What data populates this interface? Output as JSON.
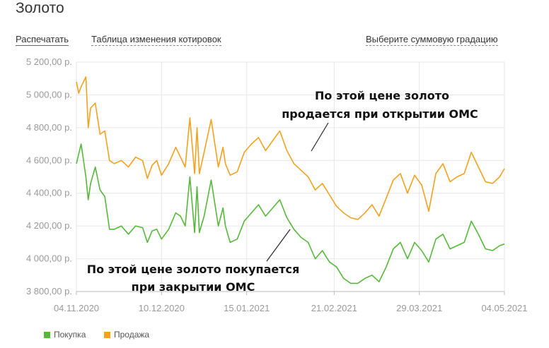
{
  "page": {
    "title": "Золото",
    "print_label": "Распечатать",
    "quotes_table_label": "Таблица изменения котировок",
    "gradation_label": "Выберите суммовую градацию"
  },
  "chart_data": {
    "type": "line",
    "title": "",
    "xlabel": "",
    "ylabel": "",
    "ylim": [
      3800,
      5200
    ],
    "y_ticks": [
      3800,
      4000,
      4200,
      4400,
      4600,
      4800,
      5000,
      5200
    ],
    "y_tick_labels": [
      "3 800,00 р.",
      "4 000,00 р.",
      "4 200,00 р.",
      "4 400,00 р.",
      "4 600,00 р.",
      "4 800,00 р.",
      "5 000,00 р.",
      "5 200,00 р."
    ],
    "x_tick_labels": [
      "04.11.2020",
      "10.12.2020",
      "15.01.2021",
      "21.02.2021",
      "29.03.2021",
      "04.05.2021"
    ],
    "x_tick_dates": [
      "2020-11-04",
      "2020-12-10",
      "2021-01-15",
      "2021-02-21",
      "2021-03-29",
      "2021-05-04"
    ],
    "grid": true,
    "legend_position": "bottom-left",
    "series": [
      {
        "name": "Покупка",
        "color": "#55b83a",
        "x": [
          "2020-11-04",
          "2020-11-05",
          "2020-11-06",
          "2020-11-08",
          "2020-11-09",
          "2020-11-10",
          "2020-11-12",
          "2020-11-14",
          "2020-11-16",
          "2020-11-18",
          "2020-11-20",
          "2020-11-23",
          "2020-11-26",
          "2020-11-29",
          "2020-12-02",
          "2020-12-04",
          "2020-12-06",
          "2020-12-08",
          "2020-12-10",
          "2020-12-13",
          "2020-12-16",
          "2020-12-18",
          "2020-12-20",
          "2020-12-22",
          "2020-12-24",
          "2020-12-25",
          "2020-12-26",
          "2020-12-28",
          "2020-12-31",
          "2021-01-03",
          "2021-01-05",
          "2021-01-06",
          "2021-01-08",
          "2021-01-11",
          "2021-01-14",
          "2021-01-17",
          "2021-01-20",
          "2021-01-23",
          "2021-01-26",
          "2021-01-29",
          "2021-02-01",
          "2021-02-04",
          "2021-02-07",
          "2021-02-10",
          "2021-02-13",
          "2021-02-16",
          "2021-02-19",
          "2021-02-22",
          "2021-02-25",
          "2021-02-28",
          "2021-03-03",
          "2021-03-06",
          "2021-03-09",
          "2021-03-12",
          "2021-03-15",
          "2021-03-18",
          "2021-03-21",
          "2021-03-24",
          "2021-03-27",
          "2021-03-30",
          "2021-04-02",
          "2021-04-05",
          "2021-04-08",
          "2021-04-11",
          "2021-04-14",
          "2021-04-17",
          "2021-04-20",
          "2021-04-23",
          "2021-04-26",
          "2021-04-29",
          "2021-05-02",
          "2021-05-04"
        ],
        "values": [
          4580,
          4640,
          4700,
          4500,
          4360,
          4460,
          4560,
          4420,
          4380,
          4180,
          4180,
          4200,
          4150,
          4200,
          4190,
          4100,
          4170,
          4180,
          4120,
          4180,
          4280,
          4260,
          4200,
          4500,
          4160,
          4440,
          4160,
          4260,
          4480,
          4200,
          4310,
          4200,
          4100,
          4120,
          4230,
          4280,
          4330,
          4260,
          4310,
          4360,
          4250,
          4180,
          4130,
          4100,
          4000,
          4050,
          3980,
          3950,
          3880,
          3850,
          3850,
          3880,
          3900,
          3860,
          3950,
          4060,
          4100,
          4000,
          4100,
          4050,
          3980,
          4120,
          4150,
          4060,
          4080,
          4100,
          4230,
          4150,
          4060,
          4050,
          4080,
          4090
        ]
      },
      {
        "name": "Продажа",
        "color": "#f4a11e",
        "x": [
          "2020-11-04",
          "2020-11-05",
          "2020-11-06",
          "2020-11-08",
          "2020-11-09",
          "2020-11-10",
          "2020-11-12",
          "2020-11-14",
          "2020-11-16",
          "2020-11-18",
          "2020-11-20",
          "2020-11-23",
          "2020-11-26",
          "2020-11-29",
          "2020-12-02",
          "2020-12-04",
          "2020-12-06",
          "2020-12-08",
          "2020-12-10",
          "2020-12-13",
          "2020-12-16",
          "2020-12-18",
          "2020-12-20",
          "2020-12-22",
          "2020-12-24",
          "2020-12-25",
          "2020-12-26",
          "2020-12-28",
          "2020-12-31",
          "2021-01-03",
          "2021-01-05",
          "2021-01-06",
          "2021-01-08",
          "2021-01-11",
          "2021-01-14",
          "2021-01-17",
          "2021-01-20",
          "2021-01-23",
          "2021-01-26",
          "2021-01-29",
          "2021-02-01",
          "2021-02-04",
          "2021-02-07",
          "2021-02-10",
          "2021-02-13",
          "2021-02-16",
          "2021-02-19",
          "2021-02-22",
          "2021-02-25",
          "2021-02-28",
          "2021-03-03",
          "2021-03-06",
          "2021-03-09",
          "2021-03-12",
          "2021-03-15",
          "2021-03-18",
          "2021-03-21",
          "2021-03-24",
          "2021-03-27",
          "2021-03-30",
          "2021-04-02",
          "2021-04-05",
          "2021-04-08",
          "2021-04-11",
          "2021-04-14",
          "2021-04-17",
          "2021-04-20",
          "2021-04-23",
          "2021-04-26",
          "2021-04-29",
          "2021-05-02",
          "2021-05-04"
        ],
        "values": [
          5080,
          5010,
          5050,
          5110,
          4800,
          4920,
          4950,
          4760,
          4780,
          4600,
          4580,
          4600,
          4560,
          4620,
          4600,
          4490,
          4570,
          4600,
          4510,
          4580,
          4680,
          4620,
          4560,
          4860,
          4520,
          4800,
          4520,
          4650,
          4850,
          4560,
          4680,
          4580,
          4510,
          4530,
          4650,
          4700,
          4740,
          4660,
          4720,
          4780,
          4660,
          4580,
          4540,
          4500,
          4420,
          4460,
          4390,
          4320,
          4280,
          4250,
          4240,
          4280,
          4330,
          4260,
          4370,
          4480,
          4520,
          4400,
          4510,
          4450,
          4290,
          4520,
          4580,
          4470,
          4500,
          4520,
          4650,
          4560,
          4470,
          4460,
          4500,
          4550
        ]
      }
    ],
    "annotations": [
      [
        "По этой цене золото",
        "продается при открытии ОМС"
      ],
      [
        "По этой цене золото покупается",
        "при закрытии ОМС"
      ]
    ]
  }
}
